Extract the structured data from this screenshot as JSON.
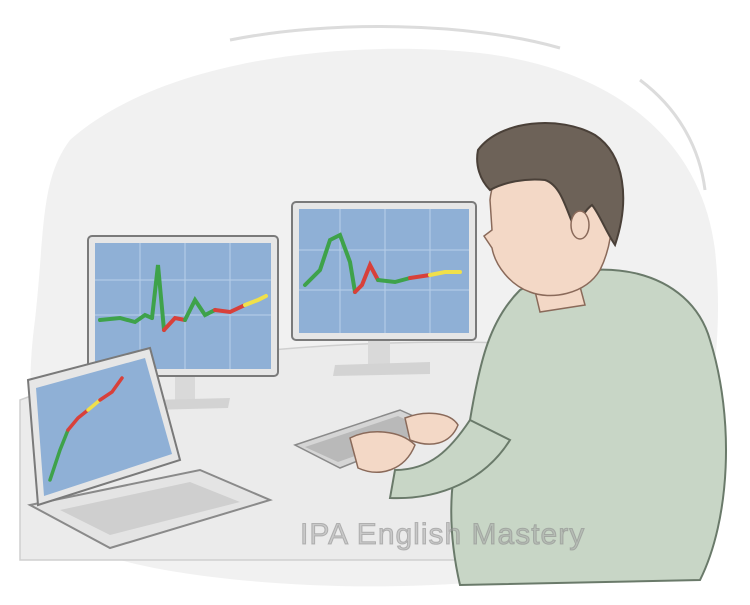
{
  "watermark": {
    "text": "IPA English Mastery"
  },
  "colors": {
    "screen": "#8fb0d6",
    "screen_grid": "#b9cfe9",
    "trend_green": "#3ea24a",
    "trend_red": "#d8403a",
    "trend_yellow": "#f0e04a",
    "hair": "#6d6258",
    "shirt": "#c8d6c6",
    "skin": "#f3d8c6",
    "desk": "#ececec",
    "monitor_frame": "#e6e6e6"
  },
  "icons": [
    "trader-figure",
    "monitor-left",
    "monitor-right",
    "laptop",
    "keyboard",
    "price-chart-icon"
  ]
}
